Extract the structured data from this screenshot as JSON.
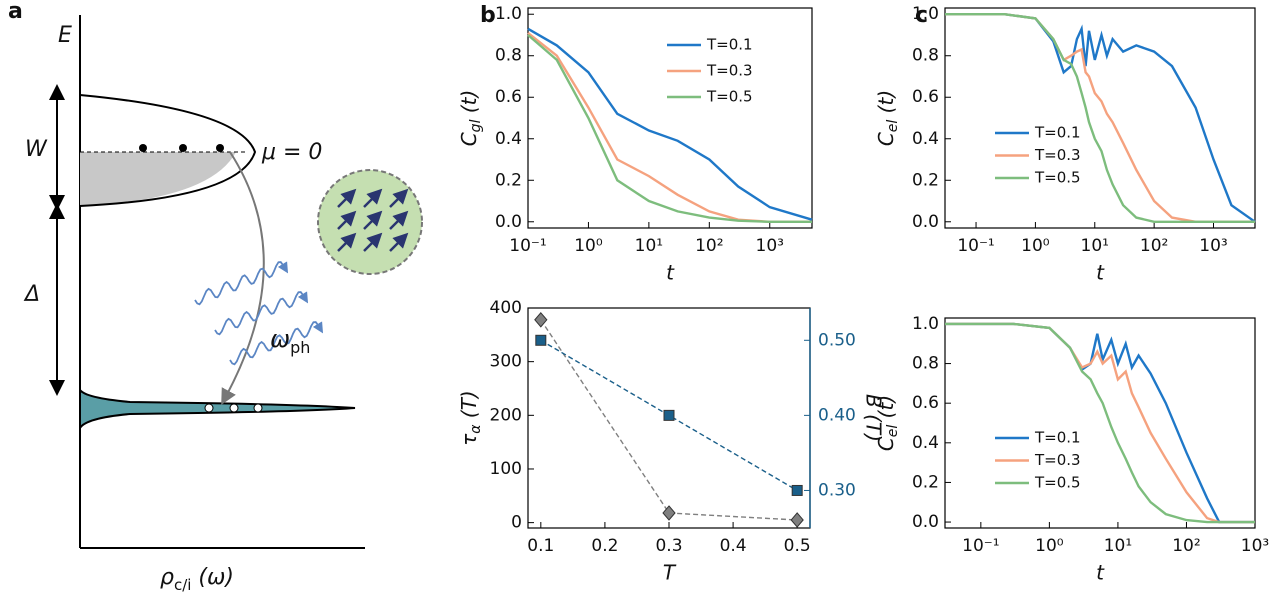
{
  "panel_labels": [
    "a",
    "b",
    "c"
  ],
  "diagram": {
    "energy": "E",
    "width": "W",
    "gap": "Δ",
    "mu": "μ = 0",
    "phonon": [
      "ω",
      "ph"
    ],
    "dos": [
      "ρ",
      "c/i",
      " (ω)"
    ]
  },
  "chart_data": [
    {
      "type": "line",
      "xscale": "log",
      "xlabel": "t",
      "ylabel": [
        "C",
        "gl",
        " (t)"
      ],
      "legend": "upper right",
      "xlim": [
        0.1,
        5000
      ],
      "ylim": [
        -0.03,
        1.03
      ],
      "xticks": [
        {
          "value": 0.1,
          "label": "10⁻¹"
        },
        {
          "value": 1,
          "label": "10⁰"
        },
        {
          "value": 10,
          "label": "10¹"
        },
        {
          "value": 100,
          "label": "10²"
        },
        {
          "value": 1000,
          "label": "10³"
        }
      ],
      "yticks": [
        {
          "value": 0,
          "label": "0.0"
        },
        0.2,
        0.4,
        0.6,
        0.8,
        {
          "value": 1,
          "label": "1.0"
        }
      ],
      "x": [
        0.1,
        0.3,
        1,
        3,
        10,
        30,
        100,
        300,
        1000,
        5000
      ],
      "series": [
        {
          "name": "T=0.1",
          "color": "#1f78c8",
          "values": [
            0.93,
            0.85,
            0.72,
            0.52,
            0.44,
            0.39,
            0.3,
            0.17,
            0.07,
            0.01
          ]
        },
        {
          "name": "T=0.3",
          "color": "#f5a27f",
          "values": [
            0.91,
            0.8,
            0.55,
            0.3,
            0.22,
            0.13,
            0.05,
            0.01,
            0,
            0
          ]
        },
        {
          "name": "T=0.5",
          "color": "#7dbd7d",
          "values": [
            0.9,
            0.78,
            0.5,
            0.2,
            0.1,
            0.05,
            0.02,
            0.005,
            0,
            0
          ]
        }
      ]
    },
    {
      "type": "line",
      "xlabel": "T",
      "ylabel": [
        "τ",
        "α",
        " (T)"
      ],
      "y2label": "B (T)",
      "linestyle": "dashed",
      "xlim": [
        0.08,
        0.52
      ],
      "ylim": [
        -10,
        400
      ],
      "y2lim": [
        0.25,
        0.543
      ],
      "xticks": [
        0.1,
        0.2,
        0.3,
        0.4,
        0.5
      ],
      "yticks": [
        0,
        100,
        200,
        300,
        400
      ],
      "y2ticks": [
        {
          "value": 0.3,
          "label": "0.30"
        },
        {
          "value": 0.4,
          "label": "0.40"
        },
        {
          "value": 0.5,
          "label": "0.50"
        }
      ],
      "y2color": "#1a5f8a",
      "x": [
        0.1,
        0.3,
        0.5
      ],
      "series": [
        {
          "color": "#7f7f7f",
          "marker": "diamond",
          "values": [
            378,
            18,
            5
          ]
        },
        {
          "color": "#1a5f8a",
          "marker": "square",
          "axis": "y2",
          "values": [
            0.5,
            0.4,
            0.3
          ]
        }
      ]
    },
    {
      "type": "line",
      "xscale": "log",
      "xlabel": "t",
      "ylabel": [
        "C",
        "el",
        " (t)"
      ],
      "legend": "center left",
      "xlim": [
        0.03,
        5000
      ],
      "ylim": [
        -0.03,
        1.03
      ],
      "xticks": [
        {
          "value": 0.1,
          "label": "10⁻¹"
        },
        {
          "value": 1,
          "label": "10⁰"
        },
        {
          "value": 10,
          "label": "10¹"
        },
        {
          "value": 100,
          "label": "10²"
        },
        {
          "value": 1000,
          "label": "10³"
        }
      ],
      "yticks": [
        {
          "value": 0,
          "label": "0.0"
        },
        0.2,
        0.4,
        0.6,
        0.8,
        {
          "value": 1,
          "label": "1.0"
        }
      ],
      "x": [
        0.03,
        0.3,
        1,
        2,
        3,
        4,
        5,
        6,
        7,
        8,
        10,
        13,
        16,
        20,
        30,
        50,
        100,
        200,
        500,
        1000,
        2000,
        5000
      ],
      "series": [
        {
          "name": "T=0.1",
          "color": "#1f78c8",
          "values": [
            1.0,
            1.0,
            0.98,
            0.87,
            0.72,
            0.75,
            0.88,
            0.93,
            0.75,
            0.92,
            0.78,
            0.9,
            0.8,
            0.88,
            0.82,
            0.85,
            0.82,
            0.75,
            0.55,
            0.3,
            0.08,
            0.0
          ]
        },
        {
          "name": "T=0.3",
          "color": "#f5a27f",
          "values": [
            1.0,
            1.0,
            0.98,
            0.88,
            0.78,
            0.8,
            0.82,
            0.83,
            0.72,
            0.7,
            0.62,
            0.58,
            0.52,
            0.48,
            0.38,
            0.25,
            0.1,
            0.02,
            0,
            0,
            0,
            0
          ]
        },
        {
          "name": "T=0.5",
          "color": "#7dbd7d",
          "values": [
            1.0,
            1.0,
            0.98,
            0.88,
            0.78,
            0.76,
            0.7,
            0.62,
            0.55,
            0.48,
            0.4,
            0.34,
            0.25,
            0.18,
            0.08,
            0.02,
            0,
            0,
            0,
            0,
            0,
            0
          ]
        }
      ]
    },
    {
      "type": "line",
      "xscale": "log",
      "xlabel": "t",
      "ylabel": [
        "C",
        "el",
        " (t)"
      ],
      "legend": "lower left",
      "xlim": [
        0.03,
        1000
      ],
      "ylim": [
        -0.03,
        1.03
      ],
      "xticks": [
        {
          "value": 0.1,
          "label": "10⁻¹"
        },
        {
          "value": 1,
          "label": "10⁰"
        },
        {
          "value": 10,
          "label": "10¹"
        },
        {
          "value": 100,
          "label": "10²"
        },
        {
          "value": 1000,
          "label": "10³"
        }
      ],
      "yticks": [
        {
          "value": 0,
          "label": "0.0"
        },
        0.2,
        0.4,
        0.6,
        0.8,
        {
          "value": 1,
          "label": "1.0"
        }
      ],
      "x": [
        0.03,
        0.3,
        1,
        2,
        3,
        4,
        5,
        6,
        8,
        10,
        13,
        16,
        20,
        30,
        50,
        100,
        200,
        300,
        500,
        1000
      ],
      "series": [
        {
          "name": "T=0.1",
          "color": "#1f78c8",
          "values": [
            1.0,
            1.0,
            0.98,
            0.88,
            0.77,
            0.8,
            0.95,
            0.82,
            0.92,
            0.8,
            0.9,
            0.78,
            0.84,
            0.75,
            0.6,
            0.35,
            0.12,
            0.0,
            0.0,
            0.0
          ]
        },
        {
          "name": "T=0.3",
          "color": "#f5a27f",
          "values": [
            1.0,
            1.0,
            0.98,
            0.88,
            0.78,
            0.8,
            0.86,
            0.8,
            0.84,
            0.72,
            0.76,
            0.65,
            0.58,
            0.45,
            0.32,
            0.15,
            0.02,
            0,
            0,
            0
          ]
        },
        {
          "name": "T=0.5",
          "color": "#7dbd7d",
          "values": [
            1.0,
            1.0,
            0.98,
            0.88,
            0.76,
            0.72,
            0.65,
            0.6,
            0.48,
            0.4,
            0.32,
            0.25,
            0.18,
            0.1,
            0.04,
            0.01,
            0,
            0,
            0,
            0
          ]
        }
      ]
    }
  ]
}
